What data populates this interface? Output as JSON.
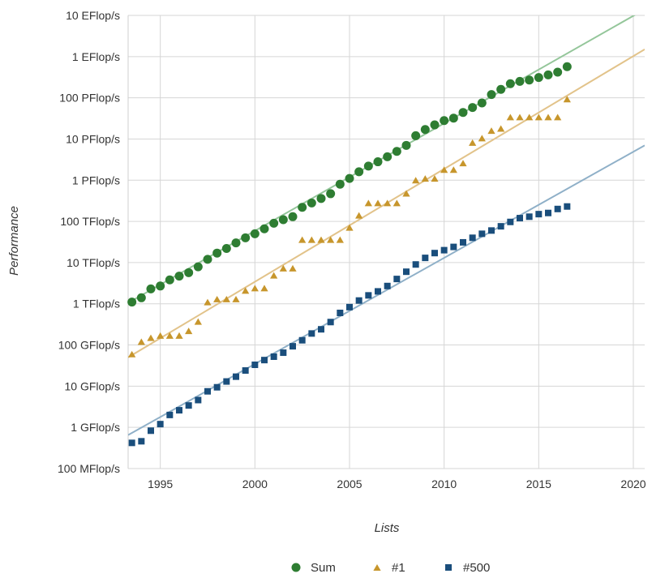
{
  "chart_data": {
    "type": "scatter",
    "title": "",
    "xlabel": "Lists",
    "ylabel": "Performance",
    "x_scale": "linear",
    "y_scale": "log",
    "xlim": [
      1993.3,
      2020.6
    ],
    "ylim_flops": [
      100000000.0,
      1e+19
    ],
    "grid": true,
    "legend_position": "bottom",
    "x_ticks": [
      {
        "value": 1995,
        "label": "1995"
      },
      {
        "value": 2000,
        "label": "2000"
      },
      {
        "value": 2005,
        "label": "2005"
      },
      {
        "value": 2010,
        "label": "2010"
      },
      {
        "value": 2015,
        "label": "2015"
      },
      {
        "value": 2020,
        "label": "2020"
      }
    ],
    "y_ticks": [
      {
        "value": 100000000.0,
        "label": "100 MFlop/s"
      },
      {
        "value": 1000000000.0,
        "label": "1 GFlop/s"
      },
      {
        "value": 10000000000.0,
        "label": "10 GFlop/s"
      },
      {
        "value": 100000000000.0,
        "label": "100 GFlop/s"
      },
      {
        "value": 1000000000000.0,
        "label": "1 TFlop/s"
      },
      {
        "value": 10000000000000.0,
        "label": "10 TFlop/s"
      },
      {
        "value": 100000000000000.0,
        "label": "100 TFlop/s"
      },
      {
        "value": 1000000000000000.0,
        "label": "1 PFlop/s"
      },
      {
        "value": 1e+16,
        "label": "10 PFlop/s"
      },
      {
        "value": 1e+17,
        "label": "100 PFlop/s"
      },
      {
        "value": 1e+18,
        "label": "1 EFlop/s"
      },
      {
        "value": 1e+19,
        "label": "10 EFlop/s"
      }
    ],
    "series": [
      {
        "name": "Sum",
        "marker": "circle",
        "color": "#2e7d32",
        "trend_color": "#94c69a",
        "trend": {
          "x": [
            1993.3,
            2020.6
          ],
          "y": [
            1050000000000.0,
            1.4e+19
          ]
        },
        "x": [
          1993.5,
          1994.0,
          1994.5,
          1995.0,
          1995.5,
          1996.0,
          1996.5,
          1997.0,
          1997.5,
          1998.0,
          1998.5,
          1999.0,
          1999.5,
          2000.0,
          2000.5,
          2001.0,
          2001.5,
          2002.0,
          2002.5,
          2003.0,
          2003.5,
          2004.0,
          2004.5,
          2005.0,
          2005.5,
          2006.0,
          2006.5,
          2007.0,
          2007.5,
          2008.0,
          2008.5,
          2009.0,
          2009.5,
          2010.0,
          2010.5,
          2011.0,
          2011.5,
          2012.0,
          2012.5,
          2013.0,
          2013.5,
          2014.0,
          2014.5,
          2015.0,
          2015.5,
          2016.0,
          2016.5
        ],
        "y": [
          1100000000000.0,
          1400000000000.0,
          2300000000000.0,
          2700000000000.0,
          3800000000000.0,
          4700000000000.0,
          5700000000000.0,
          7900000000000.0,
          12000000000000.0,
          17000000000000.0,
          22000000000000.0,
          30000000000000.0,
          40000000000000.0,
          50000000000000.0,
          66000000000000.0,
          90000000000000.0,
          110000000000000.0,
          130000000000000.0,
          220000000000000.0,
          280000000000000.0,
          360000000000000.0,
          470000000000000.0,
          800000000000000.0,
          1100000000000000.0,
          1600000000000000.0,
          2200000000000000.0,
          2800000000000000.0,
          3700000000000000.0,
          5000000000000000.0,
          7000000000000000.0,
          1.2e+16,
          1.7e+16,
          2.2e+16,
          2.8e+16,
          3.2e+16,
          4.4e+16,
          5.8e+16,
          7.5e+16,
          1.2e+17,
          1.6e+17,
          2.2e+17,
          2.5e+17,
          2.7e+17,
          3.1e+17,
          3.6e+17,
          4.2e+17,
          5.7e+17
        ]
      },
      {
        "name": "#1",
        "marker": "triangle",
        "color": "#c7962c",
        "trend_color": "#e2c38a",
        "trend": {
          "x": [
            1993.3,
            2020.6
          ],
          "y": [
            50000000000.0,
            1.5e+18
          ]
        },
        "x": [
          1993.5,
          1994.0,
          1994.5,
          1995.0,
          1995.5,
          1996.0,
          1996.5,
          1997.0,
          1997.5,
          1998.0,
          1998.5,
          1999.0,
          1999.5,
          2000.0,
          2000.5,
          2001.0,
          2001.5,
          2002.0,
          2002.5,
          2003.0,
          2003.5,
          2004.0,
          2004.5,
          2005.0,
          2005.5,
          2006.0,
          2006.5,
          2007.0,
          2007.5,
          2008.0,
          2008.5,
          2009.0,
          2009.5,
          2010.0,
          2010.5,
          2011.0,
          2011.5,
          2012.0,
          2012.5,
          2013.0,
          2013.5,
          2014.0,
          2014.5,
          2015.0,
          2015.5,
          2016.0,
          2016.5
        ],
        "y": [
          60000000000.0,
          120000000000.0,
          150000000000.0,
          170000000000.0,
          170000000000.0,
          170000000000.0,
          220000000000.0,
          370000000000.0,
          1100000000000.0,
          1300000000000.0,
          1300000000000.0,
          1300000000000.0,
          2100000000000.0,
          2400000000000.0,
          2400000000000.0,
          4900000000000.0,
          7300000000000.0,
          7300000000000.0,
          36000000000000.0,
          36000000000000.0,
          36000000000000.0,
          36000000000000.0,
          36000000000000.0,
          71000000000000.0,
          140000000000000.0,
          280000000000000.0,
          280000000000000.0,
          280000000000000.0,
          280000000000000.0,
          480000000000000.0,
          1000000000000000.0,
          1100000000000000.0,
          1100000000000000.0,
          1800000000000000.0,
          1800000000000000.0,
          2600000000000000.0,
          8200000000000000.0,
          1.05e+16,
          1.6e+16,
          1.8e+16,
          3.4e+16,
          3.4e+16,
          3.4e+16,
          3.4e+16,
          3.4e+16,
          3.4e+16,
          9.3e+16
        ]
      },
      {
        "name": "#500",
        "marker": "square",
        "color": "#1a4e7c",
        "trend_color": "#8fb0c8",
        "trend": {
          "x": [
            1993.3,
            2020.6
          ],
          "y": [
            650000000.0,
            7000000000000000.0
          ]
        },
        "x": [
          1993.5,
          1994.0,
          1994.5,
          1995.0,
          1995.5,
          1996.0,
          1996.5,
          1997.0,
          1997.5,
          1998.0,
          1998.5,
          1999.0,
          1999.5,
          2000.0,
          2000.5,
          2001.0,
          2001.5,
          2002.0,
          2002.5,
          2003.0,
          2003.5,
          2004.0,
          2004.5,
          2005.0,
          2005.5,
          2006.0,
          2006.5,
          2007.0,
          2007.5,
          2008.0,
          2008.5,
          2009.0,
          2009.5,
          2010.0,
          2010.5,
          2011.0,
          2011.5,
          2012.0,
          2012.5,
          2013.0,
          2013.5,
          2014.0,
          2014.5,
          2015.0,
          2015.5,
          2016.0,
          2016.5
        ],
        "y": [
          420000000.0,
          460000000.0,
          830000000.0,
          1200000000.0,
          2000000000.0,
          2600000000.0,
          3400000000.0,
          4600000000.0,
          7500000000.0,
          9400000000.0,
          13000000000.0,
          17000000000.0,
          24000000000.0,
          33000000000.0,
          43000000000.0,
          52000000000.0,
          65000000000.0,
          93000000000.0,
          130000000000.0,
          190000000000.0,
          240000000000.0,
          360000000000.0,
          600000000000.0,
          830000000000.0,
          1200000000000.0,
          1600000000000.0,
          2000000000000.0,
          2700000000000.0,
          4000000000000.0,
          6000000000000.0,
          9000000000000.0,
          13000000000000.0,
          17000000000000.0,
          20000000000000.0,
          24000000000000.0,
          31000000000000.0,
          40000000000000.0,
          50000000000000.0,
          60000000000000.0,
          76000000000000.0,
          97000000000000.0,
          120000000000000.0,
          130000000000000.0,
          150000000000000.0,
          160000000000000.0,
          200000000000000.0,
          230000000000000.0
        ]
      }
    ]
  }
}
